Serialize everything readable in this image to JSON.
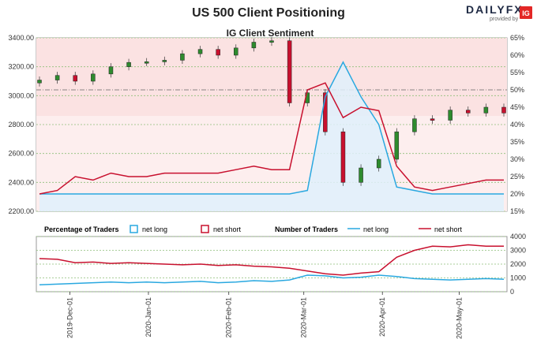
{
  "title": "US 500 Client Positioning",
  "brand": {
    "name": "DAILYFX",
    "tagline": "provided by",
    "ig": "IG"
  },
  "chart_data": [
    {
      "type": "candlestick+line",
      "title": "IG Client Sentiment",
      "x": [
        "2019-11-19",
        "2019-11-26",
        "2019-12-03",
        "2019-12-10",
        "2019-12-17",
        "2019-12-24",
        "2019-12-31",
        "2020-01-07",
        "2020-01-14",
        "2020-01-21",
        "2020-01-28",
        "2020-02-04",
        "2020-02-11",
        "2020-02-18",
        "2020-02-25",
        "2020-03-03",
        "2020-03-10",
        "2020-03-17",
        "2020-03-24",
        "2020-03-31",
        "2020-04-07",
        "2020-04-14",
        "2020-04-21",
        "2020-04-28",
        "2020-05-05",
        "2020-05-12",
        "2020-05-19"
      ],
      "price_axis": {
        "ylim": [
          2200,
          3400
        ],
        "ticks": [
          "2200.00",
          "2400.00",
          "2600.00",
          "2800.00",
          "3000.00",
          "3200.00",
          "3400.00"
        ]
      },
      "pct_axis": {
        "ylim": [
          15,
          65
        ],
        "ticks": [
          "15%",
          "20%",
          "25%",
          "30%",
          "35%",
          "40%",
          "45%",
          "50%",
          "55%",
          "60%",
          "65%"
        ]
      },
      "price_close": [
        3108,
        3140,
        3100,
        3150,
        3200,
        3230,
        3235,
        3245,
        3290,
        3320,
        3280,
        3330,
        3370,
        3380,
        2950,
        3020,
        2750,
        2400,
        2500,
        2560,
        2750,
        2840,
        2830,
        2900,
        2880,
        2920,
        2880
      ],
      "series": [
        {
          "name": "net long",
          "color": "#29a8e0",
          "values": [
            20,
            20,
            20,
            20,
            20,
            20,
            20,
            20,
            20,
            20,
            20,
            20,
            20,
            20,
            20,
            21,
            48,
            58,
            48,
            40,
            22,
            21,
            20,
            20,
            20,
            20,
            20
          ]
        },
        {
          "name": "net short",
          "color": "#c8102e",
          "values": [
            20,
            21,
            25,
            24,
            26,
            25,
            25,
            26,
            26,
            26,
            26,
            27,
            28,
            27,
            27,
            50,
            52,
            42,
            45,
            44,
            28,
            22,
            21,
            22,
            23,
            24,
            24
          ]
        }
      ]
    },
    {
      "type": "line",
      "title": "Number of Traders",
      "x_ticks": [
        "2019-Dec-01",
        "2020-Jan-01",
        "2020-Feb-01",
        "2020-Mar-01",
        "2020-Apr-01",
        "2020-May-01"
      ],
      "ylim": [
        0,
        4000
      ],
      "y_ticks": [
        "0",
        "1000",
        "2000",
        "3000",
        "4000"
      ],
      "series": [
        {
          "name": "net long",
          "color": "#29a8e0",
          "values": [
            500,
            550,
            600,
            650,
            700,
            650,
            700,
            650,
            700,
            750,
            650,
            700,
            800,
            750,
            850,
            1200,
            1150,
            1000,
            1050,
            1200,
            1100,
            950,
            900,
            850,
            900,
            950,
            900
          ]
        },
        {
          "name": "net short",
          "color": "#c8102e",
          "values": [
            2400,
            2350,
            2100,
            2150,
            2050,
            2100,
            2050,
            2000,
            1950,
            2000,
            1900,
            1950,
            1850,
            1800,
            1700,
            1500,
            1300,
            1200,
            1350,
            1450,
            2500,
            3000,
            3300,
            3250,
            3400,
            3300,
            3300
          ]
        }
      ]
    }
  ],
  "legend": {
    "percentage_label": "Percentage of Traders",
    "number_label": "Number of Traders",
    "net_long": "net long",
    "net_short": "net short"
  }
}
